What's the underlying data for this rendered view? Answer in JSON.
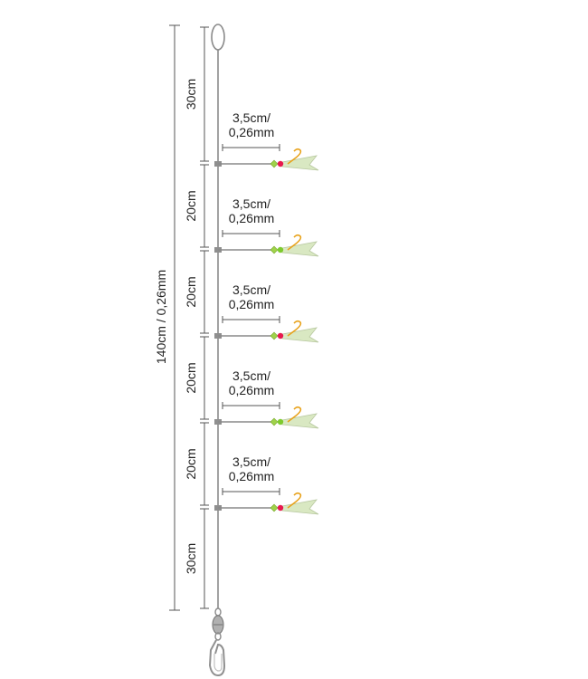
{
  "total_label": "140cm / 0,26mm",
  "segments": [
    {
      "label": "30cm",
      "value_cm": 30
    },
    {
      "label": "20cm",
      "value_cm": 20
    },
    {
      "label": "20cm",
      "value_cm": 20
    },
    {
      "label": "20cm",
      "value_cm": 20
    },
    {
      "label": "20cm",
      "value_cm": 20
    },
    {
      "label": "30cm",
      "value_cm": 30
    }
  ],
  "droppers": [
    {
      "line1": "3,5cm/",
      "line2": "0,26mm",
      "bead_color": "#e8184f",
      "lure_color": "#d9e8c2"
    },
    {
      "line1": "3,5cm/",
      "line2": "0,26mm",
      "bead_color": "#7ecb2e",
      "lure_color": "#d9e8c2"
    },
    {
      "line1": "3,5cm/",
      "line2": "0,26mm",
      "bead_color": "#e8184f",
      "lure_color": "#d9e8c2"
    },
    {
      "line1": "3,5cm/",
      "line2": "0,26mm",
      "bead_color": "#7ecb2e",
      "lure_color": "#d9e8c2"
    },
    {
      "line1": "3,5cm/",
      "line2": "0,26mm",
      "bead_color": "#e8184f",
      "lure_color": "#d9e8c2"
    }
  ],
  "colors": {
    "line": "#8a8a8a",
    "dimension": "#555555",
    "hook": "#e8a21a",
    "swivel": "#a8a8a8"
  }
}
